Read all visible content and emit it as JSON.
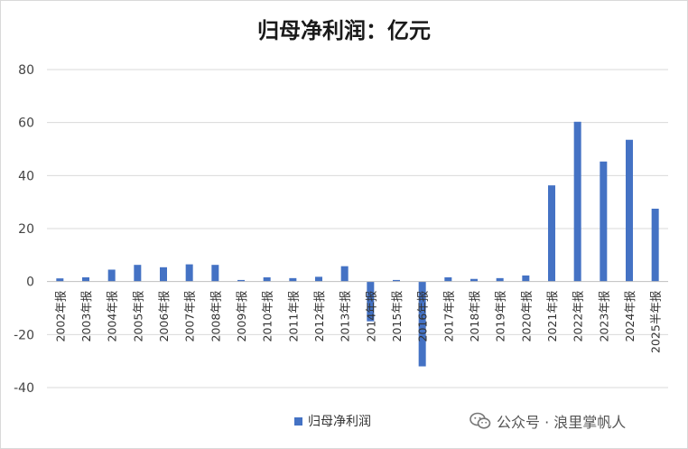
{
  "watermark": {
    "text": "公众号 · 浪里掌帆人",
    "icon": "wechat-icon"
  },
  "colors": {
    "bar": "#4472C4",
    "grid": "#d9d9d9",
    "axis": "#bfbfbf"
  },
  "chart_data": {
    "type": "bar",
    "title": "归母净利润：亿元",
    "xlabel": "",
    "ylabel": "",
    "ylim": [
      -40,
      80
    ],
    "yticks": [
      -40,
      -20,
      0,
      20,
      40,
      60,
      80
    ],
    "grid": true,
    "legend_position": "bottom",
    "categories": [
      "2002年报",
      "2003年报",
      "2004年报",
      "2005年报",
      "2006年报",
      "2007年报",
      "2008年报",
      "2009年报",
      "2010年报",
      "2011年报",
      "2012年报",
      "2013年报",
      "2014年报",
      "2015年报",
      "2016年报",
      "2017年报",
      "2018年报",
      "2019年报",
      "2020年报",
      "2021年报",
      "2022年报",
      "2023年报",
      "2024年报",
      "2025半年报"
    ],
    "series": [
      {
        "name": "归母净利润",
        "values": [
          1.2,
          1.6,
          4.5,
          6.3,
          5.4,
          6.5,
          6.3,
          0.6,
          1.6,
          1.3,
          1.8,
          5.8,
          -15.0,
          0.6,
          -32.0,
          1.6,
          1.0,
          1.3,
          2.3,
          36.3,
          60.3,
          45.3,
          53.5,
          27.5
        ]
      }
    ]
  }
}
